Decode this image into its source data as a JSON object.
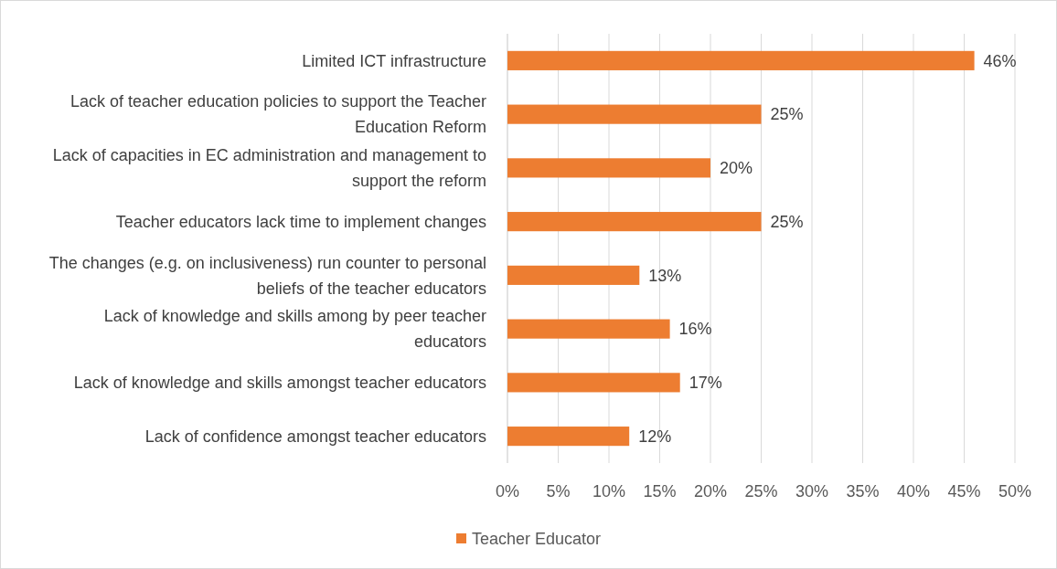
{
  "chart_data": {
    "type": "bar",
    "orientation": "horizontal",
    "categories": [
      "Limited ICT infrastructure",
      "Lack of teacher education policies to support the Teacher Education Reform",
      "Lack of capacities in EC administration and management to support the reform",
      "Teacher educators lack time to implement changes",
      "The changes (e.g. on inclusiveness) run counter to personal beliefs of the teacher educators",
      "Lack of knowledge and skills among by peer teacher educators",
      "Lack of knowledge and skills amongst teacher educators",
      "Lack of confidence amongst teacher educators"
    ],
    "series": [
      {
        "name": "Teacher Educator",
        "color": "#ed7d31",
        "values": [
          46,
          25,
          20,
          25,
          13,
          16,
          17,
          12
        ],
        "value_labels": [
          "46%",
          "25%",
          "20%",
          "25%",
          "13%",
          "16%",
          "17%",
          "12%"
        ]
      }
    ],
    "xlim": [
      0,
      50
    ],
    "xticks": [
      {
        "value": 0,
        "label": "0%"
      },
      {
        "value": 5,
        "label": "5%"
      },
      {
        "value": 10,
        "label": "10%"
      },
      {
        "value": 15,
        "label": "15%"
      },
      {
        "value": 20,
        "label": "20%"
      },
      {
        "value": 25,
        "label": "25%"
      },
      {
        "value": 30,
        "label": "30%"
      },
      {
        "value": 35,
        "label": "35%"
      },
      {
        "value": 40,
        "label": "40%"
      },
      {
        "value": 45,
        "label": "45%"
      },
      {
        "value": 50,
        "label": "50%"
      }
    ],
    "grid": "x",
    "legend": "bottom"
  }
}
